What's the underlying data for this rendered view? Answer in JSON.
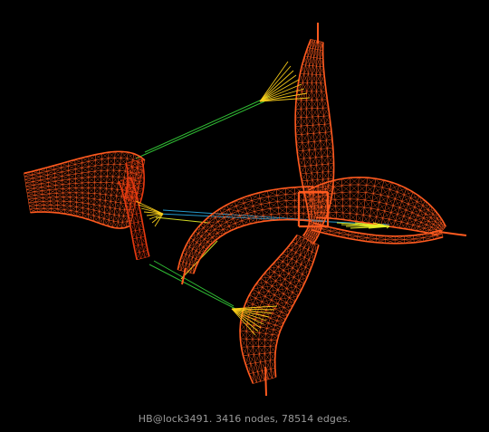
{
  "caption": "HB@lock3491. 3416 nodes, 78514 edges.",
  "colors": {
    "background": "#000000",
    "mesh": "#ff5a1f",
    "mesh_dark": "#e83a10",
    "hub": "#ffd21a",
    "edge_green": "#35d03a",
    "edge_cyan": "#28a8e0",
    "edge_yellow": "#e8f028",
    "caption": "#9a9a9a"
  }
}
